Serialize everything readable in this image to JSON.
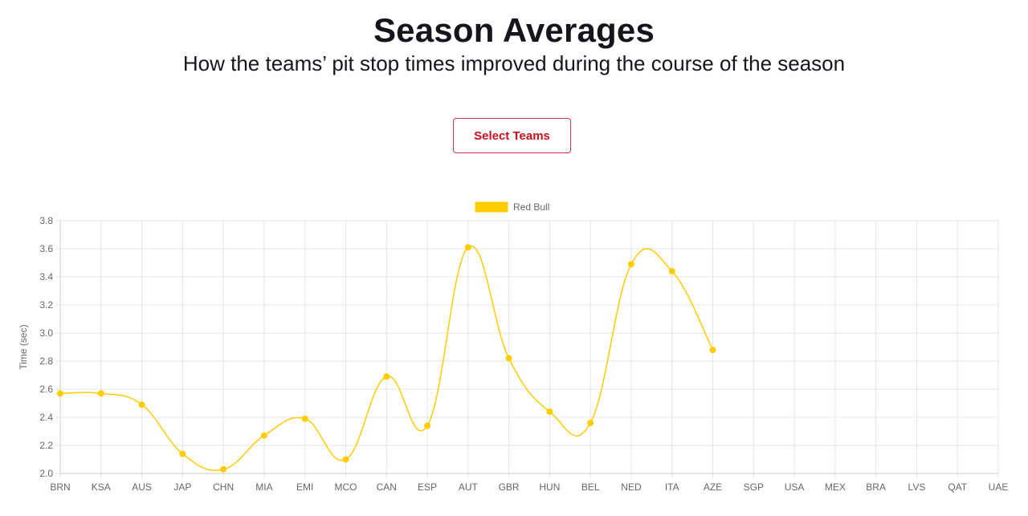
{
  "header": {
    "title": "Season Averages",
    "subtitle": "How the teams’ pit stop times improved during the course of the season"
  },
  "controls": {
    "select_teams_label": "Select Teams"
  },
  "chart_data": {
    "type": "line",
    "categories": [
      "BRN",
      "KSA",
      "AUS",
      "JAP",
      "CHN",
      "MIA",
      "EMI",
      "MCO",
      "CAN",
      "ESP",
      "AUT",
      "GBR",
      "HUN",
      "BEL",
      "NED",
      "ITA",
      "AZE",
      "SGP",
      "USA",
      "MEX",
      "BRA",
      "LVS",
      "QAT",
      "UAE"
    ],
    "series": [
      {
        "name": "Red Bull",
        "color": "#ffcc00",
        "values": [
          2.57,
          2.57,
          2.49,
          2.14,
          2.03,
          2.27,
          2.39,
          2.1,
          2.69,
          2.34,
          3.61,
          2.82,
          2.44,
          2.36,
          3.49,
          3.44,
          2.88,
          null,
          null,
          null,
          null,
          null,
          null,
          null
        ]
      }
    ],
    "xlabel": "",
    "ylabel": "Time (sec)",
    "ylim": [
      2.0,
      3.8
    ],
    "yticks": [
      2.0,
      2.2,
      2.4,
      2.6,
      2.8,
      3.0,
      3.2,
      3.4,
      3.6,
      3.8
    ],
    "grid": true,
    "legend": "top-center"
  }
}
